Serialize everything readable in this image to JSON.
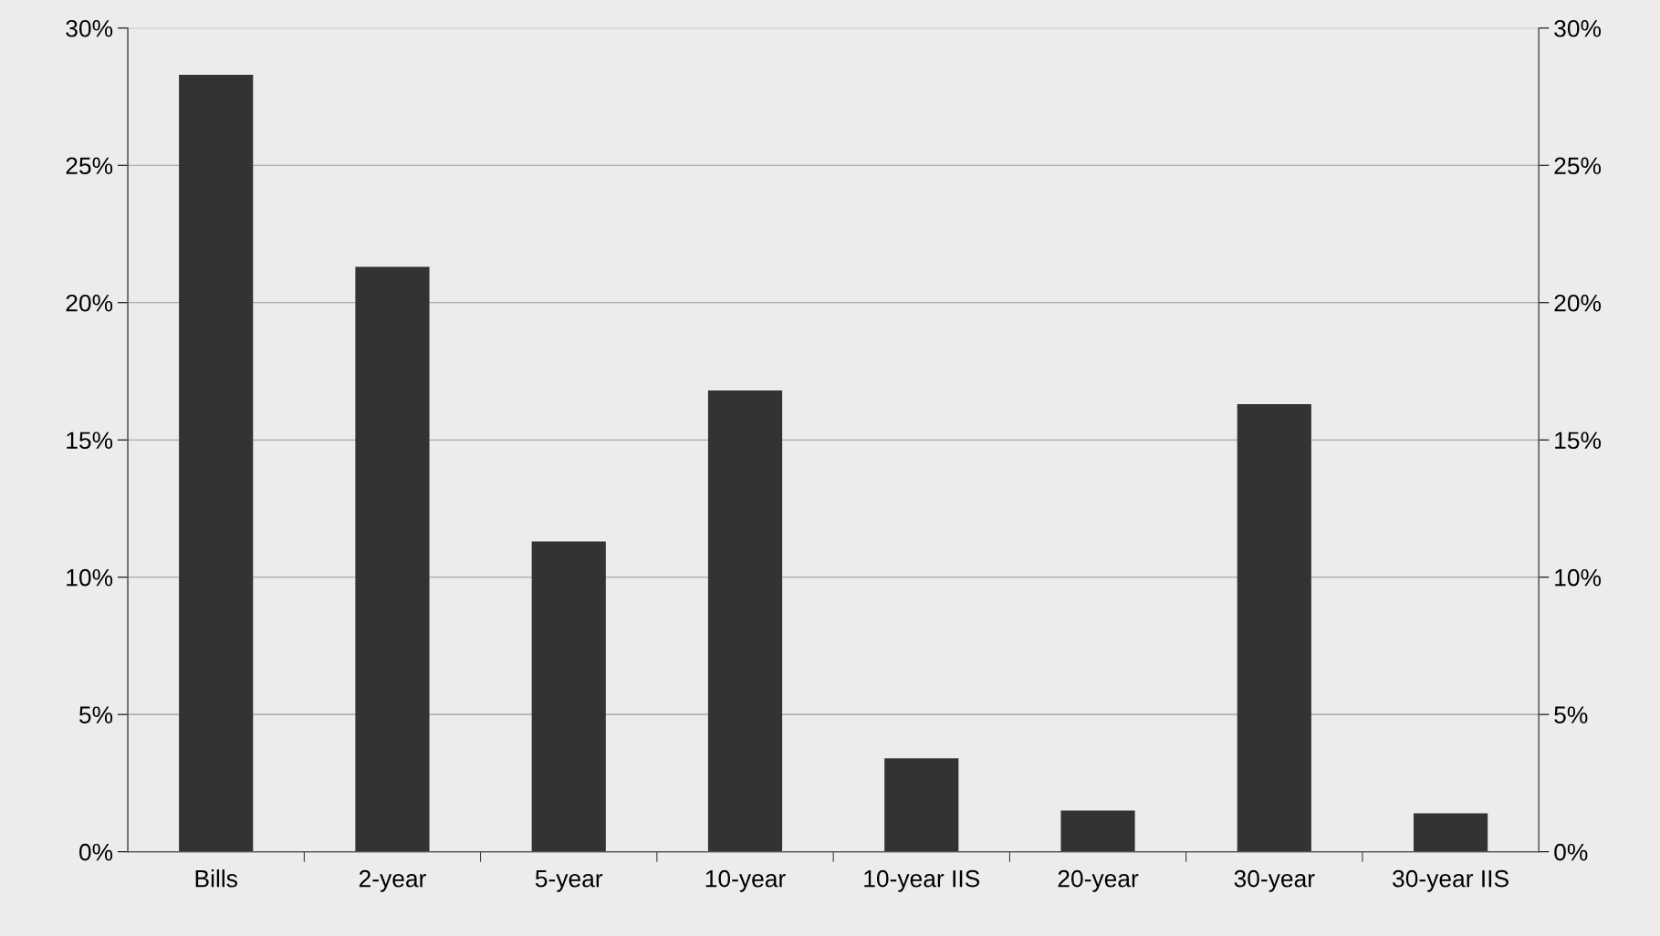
{
  "chart_data": {
    "type": "bar",
    "categories": [
      "Bills",
      "2-year",
      "5-year",
      "10-year",
      "10-year IIS",
      "20-year",
      "30-year",
      "30-year IIS"
    ],
    "values": [
      28.3,
      21.3,
      11.3,
      16.8,
      3.4,
      1.5,
      16.3,
      1.4
    ],
    "color": "#333333",
    "ylim": [
      0,
      30
    ],
    "yticks": [
      {
        "value": 0,
        "label": "0%"
      },
      {
        "value": 5,
        "label": "5%"
      },
      {
        "value": 10,
        "label": "10%"
      },
      {
        "value": 15,
        "label": "15%"
      },
      {
        "value": 20,
        "label": "20%"
      },
      {
        "value": 25,
        "label": "25%"
      },
      {
        "value": 30,
        "label": "30%"
      }
    ],
    "y2lim": [
      0,
      30
    ],
    "y2ticks": [
      {
        "value": 0,
        "label": "0%"
      },
      {
        "value": 5,
        "label": "5%"
      },
      {
        "value": 10,
        "label": "10%"
      },
      {
        "value": 15,
        "label": "15%"
      },
      {
        "value": 20,
        "label": "20%"
      },
      {
        "value": 25,
        "label": "25%"
      },
      {
        "value": 30,
        "label": "30%"
      }
    ],
    "grid": "y",
    "legend": false
  }
}
